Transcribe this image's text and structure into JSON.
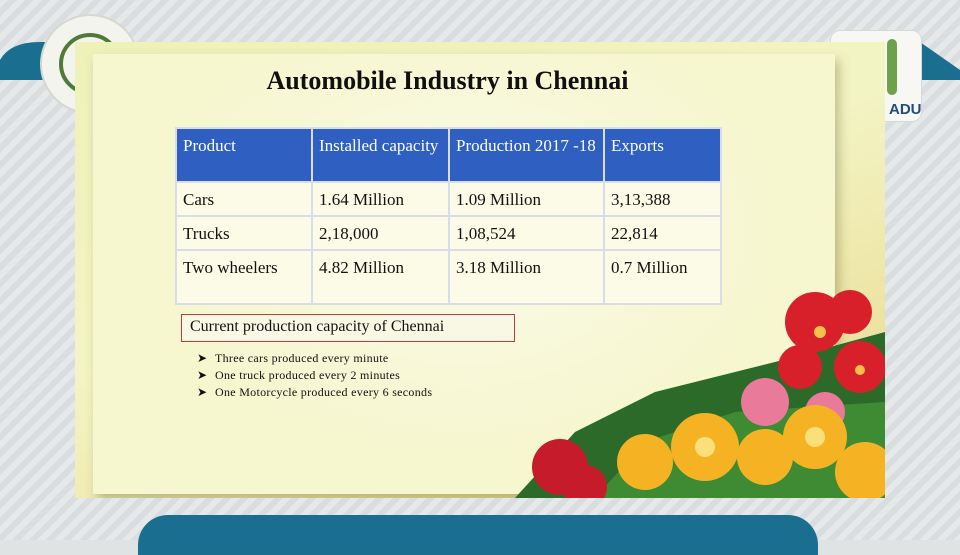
{
  "slide": {
    "title": "Automobile Industry in Chennai",
    "table": {
      "headers": [
        "Product",
        "Installed capacity",
        "Production 2017 -18",
        "Exports"
      ],
      "rows": [
        [
          "Cars",
          "1.64 Million",
          "1.09 Million",
          "3,13,388"
        ],
        [
          "Trucks",
          "2,18,000",
          "1,08,524",
          "22,814"
        ],
        [
          "Two wheelers",
          "4.82 Million",
          "3.18 Million",
          "0.7 Million"
        ]
      ]
    },
    "capacity_label": "Current production capacity of Chennai",
    "bullets": [
      "Three cars produced every minute",
      "One truck produced every 2 minutes",
      "One Motorcycle produced every 6 seconds"
    ]
  },
  "logos": {
    "right_text": "ADU"
  },
  "colors": {
    "header_fill": "#2e5fc1",
    "box_border": "#c33b3b",
    "band": "#1a6e8f"
  },
  "icons": {
    "bullet": "arrow-bullet-icon"
  }
}
